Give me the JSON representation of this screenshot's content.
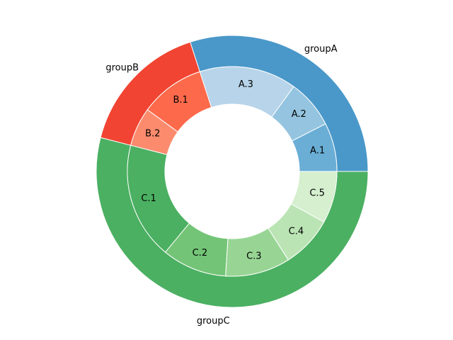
{
  "chart_data": {
    "type": "pie",
    "outer_ring": {
      "labels": [
        "groupA",
        "groupB",
        "groupC"
      ],
      "values": [
        60,
        32,
        108
      ],
      "colors": [
        "#4a98c9",
        "#f14432",
        "#4bb062"
      ]
    },
    "inner_ring": {
      "labels": [
        "A.1",
        "A.2",
        "A.3",
        "B.1",
        "B.2",
        "C.1",
        "C.2",
        "C.3",
        "C.4",
        "C.5"
      ],
      "values": [
        15,
        15,
        30,
        20,
        12,
        36,
        20,
        20,
        16,
        16
      ],
      "colors": [
        "#6aaed6",
        "#94c4df",
        "#b7d4ea",
        "#fc6a4b",
        "#fc8b6e",
        "#4bb062",
        "#73c476",
        "#98d594",
        "#bbe4b5",
        "#d5efcf"
      ]
    }
  }
}
